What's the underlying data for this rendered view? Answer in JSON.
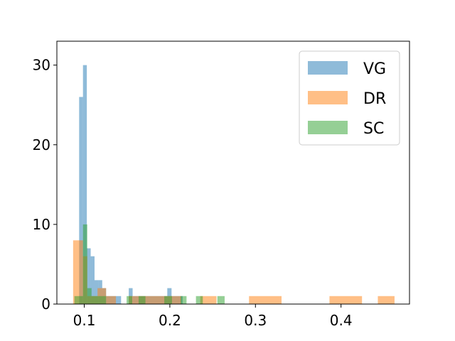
{
  "chart_data": {
    "type": "bar",
    "title": "",
    "xlabel": "",
    "ylabel": "",
    "xlim": [
      0.068,
      0.48
    ],
    "ylim": [
      0,
      33
    ],
    "grid": false,
    "legend_position": "top-right",
    "x_ticks": [
      0.1,
      0.2,
      0.3,
      0.4
    ],
    "x_tick_labels": [
      "0.1",
      "0.2",
      "0.3",
      "0.4"
    ],
    "y_ticks": [
      0,
      10,
      20,
      30
    ],
    "y_tick_labels": [
      "0",
      "10",
      "20",
      "30"
    ],
    "series": [
      {
        "name": "VG",
        "color": "#1f77b4",
        "opacity": 0.5,
        "bins": [
          {
            "x0": 0.094,
            "x1": 0.0985,
            "count": 26
          },
          {
            "x0": 0.0985,
            "x1": 0.103,
            "count": 30
          },
          {
            "x0": 0.103,
            "x1": 0.1075,
            "count": 7
          },
          {
            "x0": 0.1075,
            "x1": 0.112,
            "count": 6
          },
          {
            "x0": 0.112,
            "x1": 0.1165,
            "count": 3
          },
          {
            "x0": 0.1165,
            "x1": 0.121,
            "count": 3
          },
          {
            "x0": 0.121,
            "x1": 0.1255,
            "count": 2
          },
          {
            "x0": 0.1255,
            "x1": 0.143,
            "count": 1
          },
          {
            "x0": 0.152,
            "x1": 0.1565,
            "count": 2
          },
          {
            "x0": 0.1565,
            "x1": 0.161,
            "count": 1
          },
          {
            "x0": 0.161,
            "x1": 0.166,
            "count": 1
          },
          {
            "x0": 0.166,
            "x1": 0.197,
            "count": 1
          },
          {
            "x0": 0.197,
            "x1": 0.202,
            "count": 2
          },
          {
            "x0": 0.202,
            "x1": 0.215,
            "count": 1
          }
        ]
      },
      {
        "name": "DR",
        "color": "#ff7f0e",
        "opacity": 0.5,
        "bins": [
          {
            "x0": 0.087,
            "x1": 0.0985,
            "count": 8
          },
          {
            "x0": 0.0985,
            "x1": 0.1035,
            "count": 6
          },
          {
            "x0": 0.1035,
            "x1": 0.1155,
            "count": 1
          },
          {
            "x0": 0.1155,
            "x1": 0.1255,
            "count": 2
          },
          {
            "x0": 0.1255,
            "x1": 0.137,
            "count": 1
          },
          {
            "x0": 0.152,
            "x1": 0.1785,
            "count": 1
          },
          {
            "x0": 0.1785,
            "x1": 0.197,
            "count": 1
          },
          {
            "x0": 0.197,
            "x1": 0.2135,
            "count": 1
          },
          {
            "x0": 0.2355,
            "x1": 0.2545,
            "count": 1
          },
          {
            "x0": 0.2925,
            "x1": 0.3305,
            "count": 1
          },
          {
            "x0": 0.3865,
            "x1": 0.4245,
            "count": 1
          },
          {
            "x0": 0.443,
            "x1": 0.4625,
            "count": 1
          }
        ]
      },
      {
        "name": "SC",
        "color": "#2ca02c",
        "opacity": 0.5,
        "bins": [
          {
            "x0": 0.0885,
            "x1": 0.0985,
            "count": 1
          },
          {
            "x0": 0.0985,
            "x1": 0.1035,
            "count": 10
          },
          {
            "x0": 0.1035,
            "x1": 0.1085,
            "count": 2
          },
          {
            "x0": 0.1085,
            "x1": 0.1255,
            "count": 1
          },
          {
            "x0": 0.1495,
            "x1": 0.156,
            "count": 1
          },
          {
            "x0": 0.1635,
            "x1": 0.1715,
            "count": 1
          },
          {
            "x0": 0.1935,
            "x1": 0.2025,
            "count": 1
          },
          {
            "x0": 0.2125,
            "x1": 0.2195,
            "count": 1
          },
          {
            "x0": 0.2305,
            "x1": 0.2385,
            "count": 1
          },
          {
            "x0": 0.2555,
            "x1": 0.264,
            "count": 1
          }
        ]
      }
    ]
  }
}
